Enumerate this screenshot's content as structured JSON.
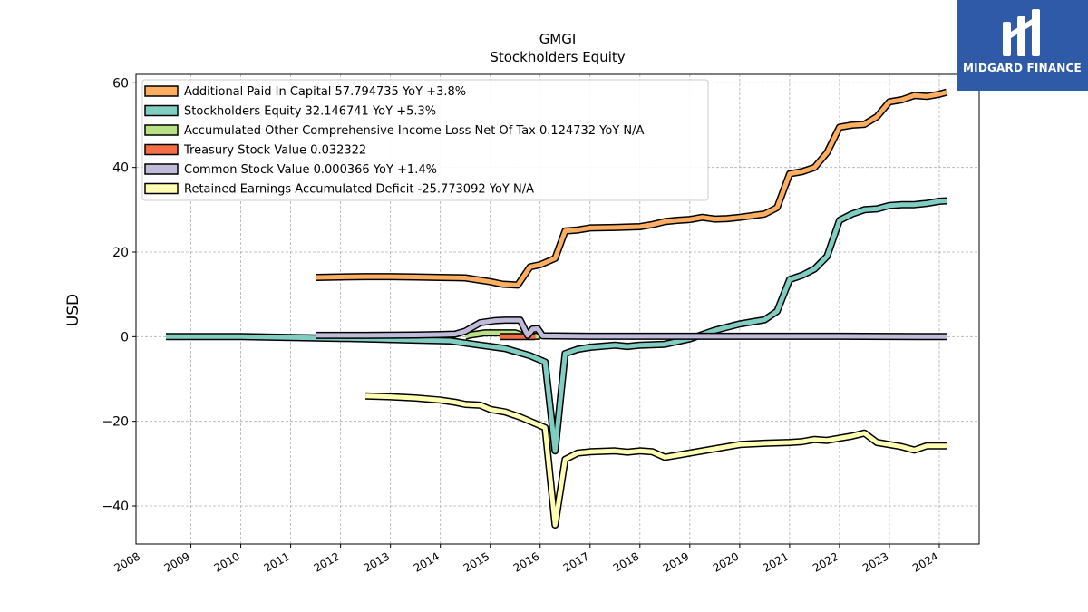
{
  "brand": {
    "name": "MIDGARD FINANCE"
  },
  "chart_data": {
    "type": "line",
    "title": "GMGI",
    "subtitle": "Stockholders  Equity",
    "xlabel": "",
    "ylabel": "USD",
    "xlim": [
      2007.9,
      2024.8
    ],
    "ylim": [
      -49,
      62
    ],
    "x_ticks": [
      "2008",
      "2009",
      "2010",
      "2011",
      "2012",
      "2013",
      "2014",
      "2015",
      "2016",
      "2017",
      "2018",
      "2019",
      "2020",
      "2021",
      "2022",
      "2023",
      "2024"
    ],
    "y_ticks": [
      60,
      40,
      20,
      0,
      -20,
      -40
    ],
    "grid": true,
    "legend_position": "top-left",
    "series": [
      {
        "name": "Additional Paid In Capital  57.794735 YoY +3.8%",
        "color": "#fdae61",
        "points": [
          [
            2011.5,
            14.0
          ],
          [
            2012.0,
            14.1
          ],
          [
            2012.5,
            14.2
          ],
          [
            2013.0,
            14.2
          ],
          [
            2013.5,
            14.1
          ],
          [
            2014.0,
            14.0
          ],
          [
            2014.5,
            13.9
          ],
          [
            2015.0,
            13.0
          ],
          [
            2015.25,
            12.4
          ],
          [
            2015.55,
            12.2
          ],
          [
            2015.8,
            16.5
          ],
          [
            2016.0,
            17.0
          ],
          [
            2016.3,
            18.5
          ],
          [
            2016.5,
            25.0
          ],
          [
            2016.75,
            25.2
          ],
          [
            2017.0,
            25.7
          ],
          [
            2017.5,
            25.8
          ],
          [
            2018.0,
            26.0
          ],
          [
            2018.25,
            26.5
          ],
          [
            2018.5,
            27.2
          ],
          [
            2018.75,
            27.5
          ],
          [
            2019.0,
            27.7
          ],
          [
            2019.25,
            28.2
          ],
          [
            2019.5,
            27.8
          ],
          [
            2019.75,
            27.9
          ],
          [
            2020.0,
            28.2
          ],
          [
            2020.25,
            28.6
          ],
          [
            2020.5,
            29.0
          ],
          [
            2020.75,
            30.5
          ],
          [
            2021.0,
            38.5
          ],
          [
            2021.25,
            39.0
          ],
          [
            2021.5,
            40.0
          ],
          [
            2021.75,
            43.5
          ],
          [
            2022.0,
            49.5
          ],
          [
            2022.25,
            50.0
          ],
          [
            2022.5,
            50.2
          ],
          [
            2022.75,
            52.0
          ],
          [
            2023.0,
            55.5
          ],
          [
            2023.25,
            56.0
          ],
          [
            2023.5,
            57.0
          ],
          [
            2023.75,
            56.8
          ],
          [
            2024.0,
            57.3
          ],
          [
            2024.15,
            57.8
          ]
        ]
      },
      {
        "name": "Stockholders Equity  32.146741 YoY +5.3%",
        "color": "#80cdc1",
        "points": [
          [
            2008.5,
            0.0
          ],
          [
            2010.0,
            0.0
          ],
          [
            2011.5,
            -0.3
          ],
          [
            2012.5,
            -0.5
          ],
          [
            2013.5,
            -0.8
          ],
          [
            2014.2,
            -1.0
          ],
          [
            2014.8,
            -2.0
          ],
          [
            2015.3,
            -2.8
          ],
          [
            2015.8,
            -4.5
          ],
          [
            2016.1,
            -6.0
          ],
          [
            2016.3,
            -27.0
          ],
          [
            2016.5,
            -4.0
          ],
          [
            2016.75,
            -3.0
          ],
          [
            2017.0,
            -2.5
          ],
          [
            2017.5,
            -2.0
          ],
          [
            2017.75,
            -2.3
          ],
          [
            2018.0,
            -2.0
          ],
          [
            2018.5,
            -1.8
          ],
          [
            2019.0,
            -0.5
          ],
          [
            2019.5,
            1.5
          ],
          [
            2020.0,
            3.0
          ],
          [
            2020.25,
            3.5
          ],
          [
            2020.5,
            4.0
          ],
          [
            2020.75,
            6.0
          ],
          [
            2021.0,
            13.5
          ],
          [
            2021.25,
            14.5
          ],
          [
            2021.5,
            16.0
          ],
          [
            2021.75,
            19.0
          ],
          [
            2022.0,
            27.5
          ],
          [
            2022.25,
            29.0
          ],
          [
            2022.5,
            30.0
          ],
          [
            2022.75,
            30.2
          ],
          [
            2023.0,
            31.0
          ],
          [
            2023.25,
            31.2
          ],
          [
            2023.5,
            31.2
          ],
          [
            2023.75,
            31.5
          ],
          [
            2024.0,
            32.0
          ],
          [
            2024.15,
            32.1
          ]
        ]
      },
      {
        "name": "Accumulated Other Comprehensive Income Loss Net Of Tax  0.124732 YoY N/A",
        "color": "#b8e186",
        "points": [
          [
            2014.5,
            0.1
          ],
          [
            2014.6,
            0.4
          ],
          [
            2014.9,
            0.9
          ],
          [
            2015.2,
            0.9
          ],
          [
            2015.5,
            0.9
          ],
          [
            2015.7,
            0.1
          ],
          [
            2016.0,
            0.1
          ]
        ]
      },
      {
        "name": "Treasury Stock Value  0.032322",
        "color": "#f46d43",
        "points": [
          [
            2015.2,
            0.03
          ],
          [
            2015.9,
            0.03
          ]
        ]
      },
      {
        "name": "Common Stock Value  0.000366 YoY +1.4%",
        "color": "#bfbbd9",
        "points": [
          [
            2011.5,
            0.3
          ],
          [
            2012.5,
            0.3
          ],
          [
            2013.5,
            0.4
          ],
          [
            2014.0,
            0.5
          ],
          [
            2014.3,
            0.6
          ],
          [
            2014.5,
            1.3
          ],
          [
            2014.8,
            3.3
          ],
          [
            2015.1,
            3.8
          ],
          [
            2015.3,
            3.9
          ],
          [
            2015.6,
            3.9
          ],
          [
            2015.75,
            0.3
          ],
          [
            2015.85,
            1.8
          ],
          [
            2015.95,
            1.9
          ],
          [
            2016.05,
            0.2
          ],
          [
            2017.0,
            0.1
          ],
          [
            2018.0,
            0.1
          ],
          [
            2019.0,
            0.1
          ],
          [
            2020.0,
            0.1
          ],
          [
            2021.0,
            0.1
          ],
          [
            2022.0,
            0.1
          ],
          [
            2023.0,
            0.05
          ],
          [
            2024.15,
            0.0
          ]
        ]
      },
      {
        "name": "Retained Earnings Accumulated Deficit  -25.773092 YoY N/A",
        "color": "#ffffb3",
        "points": [
          [
            2012.5,
            -14.0
          ],
          [
            2013.0,
            -14.2
          ],
          [
            2013.5,
            -14.5
          ],
          [
            2014.0,
            -15.0
          ],
          [
            2014.3,
            -15.5
          ],
          [
            2014.5,
            -16.0
          ],
          [
            2014.8,
            -16.2
          ],
          [
            2015.0,
            -17.2
          ],
          [
            2015.3,
            -17.8
          ],
          [
            2015.6,
            -19.0
          ],
          [
            2015.9,
            -20.5
          ],
          [
            2016.1,
            -21.5
          ],
          [
            2016.3,
            -44.5
          ],
          [
            2016.5,
            -29.0
          ],
          [
            2016.75,
            -27.5
          ],
          [
            2017.0,
            -27.2
          ],
          [
            2017.5,
            -27.0
          ],
          [
            2017.75,
            -27.3
          ],
          [
            2018.0,
            -27.0
          ],
          [
            2018.25,
            -27.2
          ],
          [
            2018.5,
            -28.5
          ],
          [
            2018.75,
            -28.0
          ],
          [
            2019.0,
            -27.5
          ],
          [
            2019.5,
            -26.5
          ],
          [
            2020.0,
            -25.5
          ],
          [
            2020.5,
            -25.2
          ],
          [
            2021.0,
            -25.0
          ],
          [
            2021.25,
            -24.8
          ],
          [
            2021.5,
            -24.3
          ],
          [
            2021.75,
            -24.5
          ],
          [
            2022.0,
            -24.0
          ],
          [
            2022.25,
            -23.5
          ],
          [
            2022.5,
            -22.8
          ],
          [
            2022.75,
            -25.0
          ],
          [
            2023.0,
            -25.5
          ],
          [
            2023.25,
            -26.0
          ],
          [
            2023.5,
            -26.8
          ],
          [
            2023.75,
            -25.8
          ],
          [
            2024.15,
            -25.8
          ]
        ]
      }
    ]
  }
}
